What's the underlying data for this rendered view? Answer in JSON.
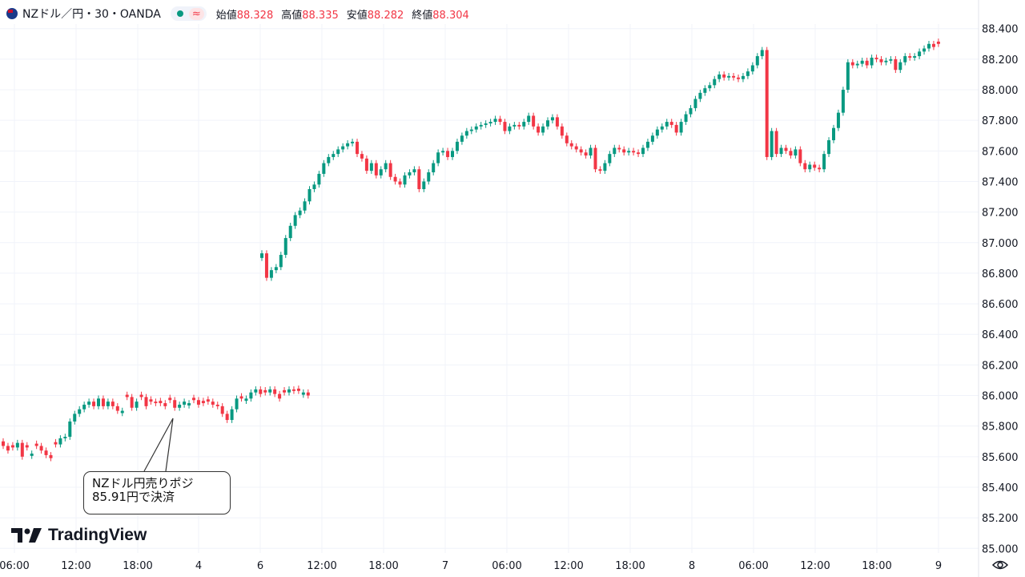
{
  "header": {
    "symbol": "NZドル／円・30・OANDA",
    "approx_icon": "≈",
    "open_label": "始値",
    "open_value": "88.328",
    "high_label": "高値",
    "high_value": "88.335",
    "low_label": "安値",
    "low_value": "88.282",
    "close_label": "終値",
    "close_value": "88.304"
  },
  "logo_text": "TradingView",
  "annotation": {
    "line1": "NZドル円売りポジ",
    "line2": "85.91円で決済"
  },
  "colors": {
    "up": "#089981",
    "down": "#f23645",
    "grid": "#f0f3fa",
    "text": "#131722"
  },
  "chart_data": {
    "type": "candlestick",
    "ylim": [
      84.97,
      88.43
    ],
    "y_ticks": [
      "88.400",
      "88.200",
      "88.000",
      "87.800",
      "87.600",
      "87.400",
      "87.200",
      "87.000",
      "86.800",
      "86.600",
      "86.400",
      "86.200",
      "86.000",
      "85.800",
      "85.600",
      "85.400",
      "85.200",
      "85.000"
    ],
    "x_ticks": [
      "06:00",
      "12:00",
      "18:00",
      "4",
      "6",
      "12:00",
      "18:00",
      "7",
      "06:00",
      "12:00",
      "18:00",
      "8",
      "06:00",
      "12:00",
      "18:00",
      "9"
    ],
    "segments": [
      {
        "points": [
          [
            85.67,
            "d"
          ],
          [
            85.64,
            "d"
          ],
          [
            85.66,
            "d"
          ],
          [
            85.69,
            "u"
          ],
          [
            85.6,
            "d"
          ],
          [
            85.66,
            "d"
          ],
          [
            85.62,
            "u"
          ],
          [
            85.67,
            "d"
          ],
          [
            85.64,
            "d"
          ],
          [
            85.61,
            "d"
          ],
          [
            85.59,
            "d"
          ],
          [
            85.68,
            "d"
          ],
          [
            85.72,
            "u"
          ],
          [
            85.73,
            "u"
          ],
          [
            85.83,
            "u"
          ],
          [
            85.88,
            "u"
          ],
          [
            85.91,
            "u"
          ],
          [
            85.94,
            "u"
          ],
          [
            85.96,
            "u"
          ],
          [
            85.93,
            "d"
          ],
          [
            85.98,
            "u"
          ],
          [
            85.93,
            "d"
          ],
          [
            85.96,
            "u"
          ],
          [
            85.93,
            "d"
          ],
          [
            85.9,
            "d"
          ],
          [
            85.9,
            "u"
          ],
          [
            85.99,
            "d"
          ],
          [
            85.92,
            "d"
          ],
          [
            85.96,
            "u"
          ],
          [
            85.99,
            "d"
          ],
          [
            85.93,
            "d"
          ],
          [
            85.96,
            "d"
          ],
          [
            85.95,
            "d"
          ],
          [
            85.95,
            "d"
          ],
          [
            85.93,
            "d"
          ],
          [
            85.97,
            "d"
          ],
          [
            85.92,
            "d"
          ],
          [
            85.94,
            "u"
          ],
          [
            85.96,
            "u"
          ],
          [
            85.95,
            "u"
          ],
          [
            85.97,
            "d"
          ],
          [
            85.94,
            "d"
          ],
          [
            85.95,
            "d"
          ],
          [
            85.96,
            "d"
          ],
          [
            85.94,
            "d"
          ],
          [
            85.93,
            "d"
          ],
          [
            85.88,
            "d"
          ],
          [
            85.84,
            "d"
          ],
          [
            85.91,
            "u"
          ],
          [
            85.98,
            "u"
          ],
          [
            85.98,
            "d"
          ],
          [
            85.98,
            "u"
          ],
          [
            86.02,
            "u"
          ],
          [
            86.04,
            "u"
          ],
          [
            86.01,
            "d"
          ],
          [
            86.02,
            "d"
          ],
          [
            86.04,
            "u"
          ],
          [
            86.01,
            "d"
          ],
          [
            85.98,
            "d"
          ],
          [
            86.02,
            "d"
          ],
          [
            86.04,
            "u"
          ],
          [
            86.03,
            "d"
          ],
          [
            86.03,
            "d"
          ],
          [
            86.02,
            "u"
          ],
          [
            86.0,
            "d"
          ]
        ]
      },
      {
        "points": [
          [
            86.93,
            "u"
          ],
          [
            86.77,
            "d"
          ],
          [
            86.82,
            "u"
          ],
          [
            86.84,
            "u"
          ],
          [
            86.92,
            "u"
          ],
          [
            87.03,
            "u"
          ],
          [
            87.11,
            "u"
          ],
          [
            87.18,
            "u"
          ],
          [
            87.21,
            "u"
          ],
          [
            87.27,
            "u"
          ],
          [
            87.35,
            "u"
          ],
          [
            87.38,
            "u"
          ],
          [
            87.45,
            "u"
          ],
          [
            87.52,
            "u"
          ],
          [
            87.56,
            "u"
          ],
          [
            87.58,
            "u"
          ],
          [
            87.61,
            "u"
          ],
          [
            87.63,
            "u"
          ],
          [
            87.65,
            "u"
          ],
          [
            87.66,
            "u"
          ],
          [
            87.58,
            "d"
          ],
          [
            87.55,
            "d"
          ],
          [
            87.47,
            "d"
          ],
          [
            87.52,
            "u"
          ],
          [
            87.44,
            "d"
          ],
          [
            87.48,
            "u"
          ],
          [
            87.52,
            "u"
          ],
          [
            87.43,
            "d"
          ],
          [
            87.4,
            "d"
          ],
          [
            87.38,
            "d"
          ],
          [
            87.44,
            "u"
          ],
          [
            87.46,
            "u"
          ],
          [
            87.48,
            "u"
          ],
          [
            87.35,
            "d"
          ],
          [
            87.4,
            "u"
          ],
          [
            87.46,
            "u"
          ],
          [
            87.52,
            "u"
          ],
          [
            87.59,
            "u"
          ],
          [
            87.6,
            "u"
          ],
          [
            87.56,
            "d"
          ],
          [
            87.6,
            "u"
          ],
          [
            87.66,
            "u"
          ],
          [
            87.7,
            "u"
          ],
          [
            87.73,
            "u"
          ],
          [
            87.74,
            "u"
          ],
          [
            87.76,
            "u"
          ],
          [
            87.77,
            "u"
          ],
          [
            87.78,
            "u"
          ],
          [
            87.79,
            "u"
          ],
          [
            87.81,
            "u"
          ],
          [
            87.79,
            "d"
          ],
          [
            87.73,
            "d"
          ],
          [
            87.76,
            "u"
          ],
          [
            87.77,
            "u"
          ],
          [
            87.76,
            "d"
          ],
          [
            87.79,
            "u"
          ],
          [
            87.83,
            "u"
          ],
          [
            87.76,
            "d"
          ],
          [
            87.72,
            "d"
          ],
          [
            87.76,
            "u"
          ],
          [
            87.8,
            "u"
          ],
          [
            87.82,
            "u"
          ],
          [
            87.76,
            "d"
          ],
          [
            87.7,
            "d"
          ],
          [
            87.65,
            "d"
          ],
          [
            87.63,
            "d"
          ],
          [
            87.61,
            "d"
          ],
          [
            87.59,
            "d"
          ],
          [
            87.57,
            "d"
          ],
          [
            87.62,
            "u"
          ],
          [
            87.48,
            "d"
          ],
          [
            87.47,
            "d"
          ],
          [
            87.52,
            "u"
          ],
          [
            87.58,
            "u"
          ],
          [
            87.62,
            "u"
          ],
          [
            87.61,
            "d"
          ],
          [
            87.59,
            "d"
          ],
          [
            87.6,
            "u"
          ],
          [
            87.59,
            "d"
          ],
          [
            87.58,
            "d"
          ],
          [
            87.62,
            "u"
          ],
          [
            87.66,
            "u"
          ],
          [
            87.7,
            "u"
          ],
          [
            87.74,
            "u"
          ],
          [
            87.76,
            "u"
          ],
          [
            87.79,
            "u"
          ],
          [
            87.77,
            "d"
          ],
          [
            87.72,
            "d"
          ],
          [
            87.79,
            "u"
          ],
          [
            87.84,
            "u"
          ],
          [
            87.88,
            "u"
          ],
          [
            87.94,
            "u"
          ],
          [
            87.98,
            "u"
          ],
          [
            88.01,
            "u"
          ],
          [
            88.03,
            "u"
          ],
          [
            88.07,
            "u"
          ],
          [
            88.1,
            "u"
          ],
          [
            88.08,
            "d"
          ],
          [
            88.09,
            "u"
          ],
          [
            88.08,
            "d"
          ],
          [
            88.07,
            "d"
          ],
          [
            88.09,
            "u"
          ],
          [
            88.12,
            "u"
          ],
          [
            88.16,
            "u"
          ],
          [
            88.22,
            "u"
          ],
          [
            88.26,
            "u"
          ],
          [
            87.56,
            "d"
          ],
          [
            87.73,
            "u"
          ],
          [
            87.58,
            "d"
          ],
          [
            87.62,
            "u"
          ],
          [
            87.6,
            "d"
          ],
          [
            87.57,
            "d"
          ],
          [
            87.61,
            "u"
          ],
          [
            87.52,
            "d"
          ],
          [
            87.48,
            "d"
          ],
          [
            87.51,
            "u"
          ],
          [
            87.49,
            "d"
          ],
          [
            87.48,
            "d"
          ],
          [
            87.58,
            "u"
          ],
          [
            87.67,
            "u"
          ],
          [
            87.75,
            "u"
          ],
          [
            87.85,
            "u"
          ],
          [
            88.0,
            "u"
          ],
          [
            88.18,
            "u"
          ],
          [
            88.16,
            "d"
          ],
          [
            88.17,
            "u"
          ],
          [
            88.19,
            "u"
          ],
          [
            88.16,
            "d"
          ],
          [
            88.21,
            "u"
          ],
          [
            88.2,
            "d"
          ],
          [
            88.18,
            "d"
          ],
          [
            88.19,
            "u"
          ],
          [
            88.2,
            "u"
          ],
          [
            88.13,
            "d"
          ],
          [
            88.18,
            "u"
          ],
          [
            88.22,
            "u"
          ],
          [
            88.21,
            "d"
          ],
          [
            88.22,
            "u"
          ],
          [
            88.25,
            "u"
          ],
          [
            88.27,
            "u"
          ],
          [
            88.3,
            "u"
          ],
          [
            88.28,
            "d"
          ],
          [
            88.3,
            "d"
          ]
        ]
      }
    ]
  }
}
